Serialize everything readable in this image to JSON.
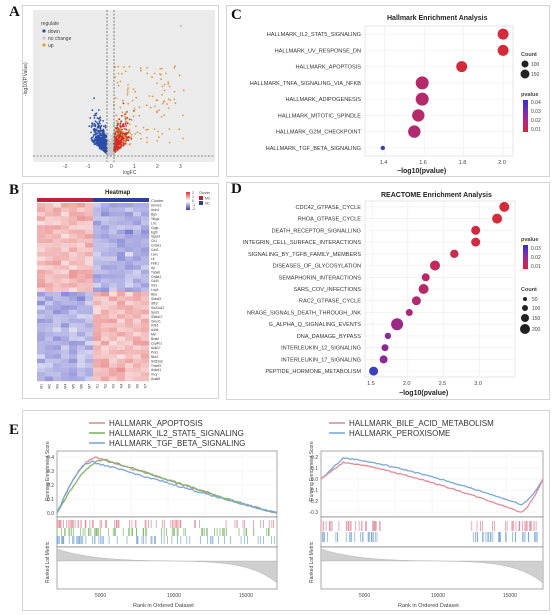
{
  "labels": {
    "A": "A",
    "B": "B",
    "C": "C",
    "D": "D",
    "E": "E"
  },
  "volcano": {
    "legend_title": "regulate",
    "legend": [
      {
        "name": "down",
        "color": "#2b4fa8"
      },
      {
        "name": "no change",
        "color": "#c8c8c8"
      },
      {
        "name": "up",
        "color": "#d94b3a"
      }
    ],
    "ylabel": "-log10(P.Value)",
    "xlabel": "logFC",
    "xticks": [
      "-2",
      "-1",
      "0",
      "1",
      "2",
      "3"
    ]
  },
  "heatmap": {
    "title": "Heatmap",
    "cluster_label": "Cluster",
    "legend_title": "Cluster",
    "legend_items": [
      {
        "name": "MC",
        "color": "#c0223a"
      },
      {
        "name": "NC",
        "color": "#2d3e9c"
      }
    ],
    "scale": [
      "2",
      "1",
      "0",
      "-1",
      "-2"
    ],
    "genes_top": [
      "Hmmr1",
      "Anln1",
      "Bgn",
      "Tshg1",
      "Lrrc",
      "Cygb",
      "Egf3",
      "Sgca3",
      "Ctr1",
      "Col3a1",
      "Cav3",
      "Lox1",
      "Lif",
      "Fbln1",
      "Ajr",
      "Tuba6",
      "Col6a1",
      "Cd44",
      "Vis1",
      "Lrrp3"
    ],
    "genes_bottom": [
      "Rplc",
      "Sstod3",
      "Sfb3",
      "Slc22a12",
      "Spnl1",
      "Slc6a17",
      "Gmor1",
      "Kif16",
      "Adh6",
      "Mvl",
      "Bcat2",
      "Cyp4b1",
      "Acsl17",
      "Pck1",
      "Nkx1",
      "Sic52a3",
      "Tmmf3",
      "Ankrd1",
      "Xrcy",
      "Acad9"
    ],
    "samples": [
      "M1",
      "M2",
      "M3",
      "M4",
      "M5",
      "M6",
      "M7",
      "N1",
      "N2",
      "N3",
      "N4",
      "N5",
      "N6",
      "N7"
    ]
  },
  "hallmark": {
    "title": "Hallmark Enrichment Analysis",
    "xlabel": "−log10(pvalue)",
    "xticks": [
      "1.4",
      "1.6",
      "1.8",
      "2.0"
    ],
    "count_title": "Count",
    "count_items": [
      "100",
      "150"
    ],
    "pvalue_title": "pvalue",
    "pvalue_items": [
      "0.04",
      "0.03",
      "0.02",
      "0.01"
    ],
    "terms": [
      {
        "name": "HALLMARK_IL2_STAT5_SIGNALING",
        "x": 2.0,
        "color": "#d42a3a",
        "r": 5.5
      },
      {
        "name": "HALLMARK_UV_RESPONSE_DN",
        "x": 2.0,
        "color": "#d42a3a",
        "r": 5.5
      },
      {
        "name": "HALLMARK_APOPTOSIS",
        "x": 1.79,
        "color": "#d42a3a",
        "r": 5.5
      },
      {
        "name": "HALLMARK_TNFA_SIGNALING_VIA_NFKB",
        "x": 1.59,
        "color": "#b42a6a",
        "r": 6.5
      },
      {
        "name": "HALLMARK_ADIPOGENESIS",
        "x": 1.59,
        "color": "#b42a6a",
        "r": 6.5
      },
      {
        "name": "HALLMARK_MITOTIC_SPINDLE",
        "x": 1.57,
        "color": "#b42a6a",
        "r": 6.2
      },
      {
        "name": "HALLMARK_G2M_CHECKPOINT",
        "x": 1.55,
        "color": "#b02a72",
        "r": 6.2
      },
      {
        "name": "HALLMARK_TGF_BETA_SIGNALING",
        "x": 1.39,
        "color": "#3a40c0",
        "r": 2.2
      }
    ]
  },
  "reactome": {
    "title": "REACTOME Enrichment Analysis",
    "xlabel": "−log10(pvalue)",
    "xticks": [
      "1.5",
      "2.0",
      "2.5",
      "3.0"
    ],
    "count_title": "Count",
    "count_items": [
      "50",
      "100",
      "150",
      "200"
    ],
    "pvalue_title": "pvalue",
    "pvalue_items": [
      "0.03",
      "0.02",
      "0.01"
    ],
    "terms": [
      {
        "name": "CDC42_GTPASE_CYCLE",
        "x": 3.35,
        "color": "#d42a3a",
        "r": 5.0
      },
      {
        "name": "RHOA_GTPASE_CYCLE",
        "x": 3.25,
        "color": "#d42a3a",
        "r": 5.0
      },
      {
        "name": "DEATH_RECEPTOR_SIGNALLING",
        "x": 2.95,
        "color": "#d02a44",
        "r": 4.5
      },
      {
        "name": "INTEGRIN_CELL_SURFACE_INTERACTIONS",
        "x": 2.95,
        "color": "#d02a44",
        "r": 4.5
      },
      {
        "name": "SIGNALING_BY_TGFB_FAMILY_MEMBERS",
        "x": 2.65,
        "color": "#c82a50",
        "r": 4.2
      },
      {
        "name": "DISEASES_OF_GLYCOSYLATION",
        "x": 2.38,
        "color": "#c02a5a",
        "r": 5.0
      },
      {
        "name": "SEMAPHORIN_INTERACTIONS",
        "x": 2.25,
        "color": "#b82a66",
        "r": 4.0
      },
      {
        "name": "SARS_COV_INFECTIONS",
        "x": 2.22,
        "color": "#b42a6a",
        "r": 5.0
      },
      {
        "name": "RAC2_GTPASE_CYCLE",
        "x": 2.12,
        "color": "#b02a70",
        "r": 4.5
      },
      {
        "name": "NRAGE_SIGNALS_DEATH_THROUGH_JNK",
        "x": 2.02,
        "color": "#a82a78",
        "r": 3.5
      },
      {
        "name": "G_ALPHA_Q_SIGNALING_EVENTS",
        "x": 1.85,
        "color": "#9a2a86",
        "r": 6.0
      },
      {
        "name": "DNA_DAMAGE_BYPASS",
        "x": 1.72,
        "color": "#8a2a96",
        "r": 3.2
      },
      {
        "name": "INTERLEUKIN_12_SIGNALING",
        "x": 1.68,
        "color": "#8a2a96",
        "r": 3.5
      },
      {
        "name": "INTERLEUKIN_17_SIGNALING",
        "x": 1.66,
        "color": "#8a2a96",
        "r": 4.0
      },
      {
        "name": "PEPTIDE_HORMONE_METABOLISM",
        "x": 1.52,
        "color": "#3a40c0",
        "r": 4.5
      }
    ]
  },
  "gsea_left": {
    "legend": [
      {
        "name": "HALLMARK_APOPTOSIS",
        "color": "#e08a9a"
      },
      {
        "name": "HALLMARK_IL2_STAT5_SIGNALING",
        "color": "#7fb56a"
      },
      {
        "name": "HALLMARK_TGF_BETA_SIGNALING",
        "color": "#7aa8d8"
      }
    ],
    "ylabel_top": "Running Enrichment Score",
    "ylabel_bottom": "Ranked List Metric",
    "xlabel": "Rank in Ordered Dataset",
    "yticks": [
      "0.4",
      "0.3",
      "0.2",
      "0.1",
      "0.0"
    ],
    "xticks": [
      "5000",
      "10000",
      "15000"
    ]
  },
  "gsea_right": {
    "legend": [
      {
        "name": "HALLMARK_BILE_ACID_METABOLISM",
        "color": "#e08a9a"
      },
      {
        "name": "HALLMARK_PEROXISOME",
        "color": "#7aa8d8"
      }
    ],
    "ylabel_top": "Running Enrichment Score",
    "ylabel_bottom": "Ranked List Metric",
    "xlabel": "Rank in Ordered Dataset",
    "yticks": [
      "0.2",
      "0.1",
      "0.0",
      "-0.1",
      "-0.2",
      "-0.3"
    ],
    "xticks": [
      "5000",
      "10000",
      "15000"
    ]
  }
}
